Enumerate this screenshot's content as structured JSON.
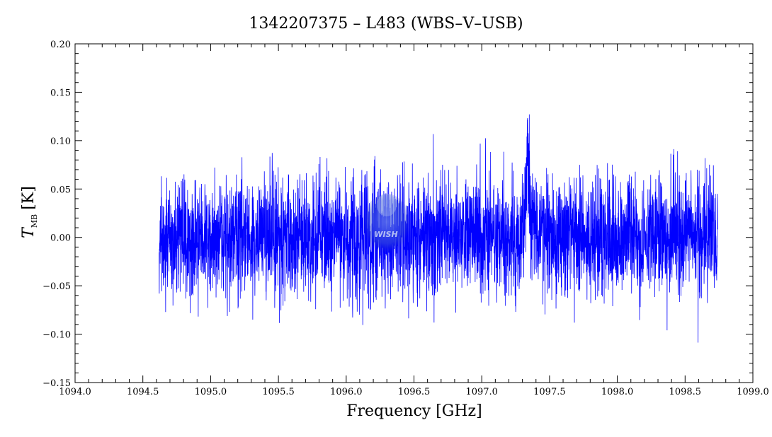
{
  "chart_data": {
    "type": "line",
    "title": "1342207375 – L483 (WBS–V–USB)",
    "xlabel": "Frequency [GHz]",
    "ylabel": {
      "symbol": "T",
      "subscript": "MB",
      "unit": "[K]"
    },
    "xlim": [
      1094.0,
      1099.0
    ],
    "ylim": [
      -0.15,
      0.2
    ],
    "x_ticks": [
      "1094.0",
      "1094.5",
      "1095.0",
      "1095.5",
      "1096.0",
      "1096.5",
      "1097.0",
      "1097.5",
      "1098.0",
      "1098.5",
      "1099.0"
    ],
    "y_ticks": [
      "−0.15",
      "−0.10",
      "−0.05",
      "0.00",
      "0.05",
      "0.10",
      "0.15",
      "0.20"
    ],
    "grid": false,
    "legend": "none",
    "series_color": "#0000ff",
    "spectrum": {
      "x_start": 1094.62,
      "x_end": 1098.74,
      "baseline": 0.0,
      "noise_rms": 0.03,
      "feature": {
        "center": 1097.34,
        "peak": 0.16,
        "width": 0.012
      }
    },
    "watermark": "WISH"
  }
}
